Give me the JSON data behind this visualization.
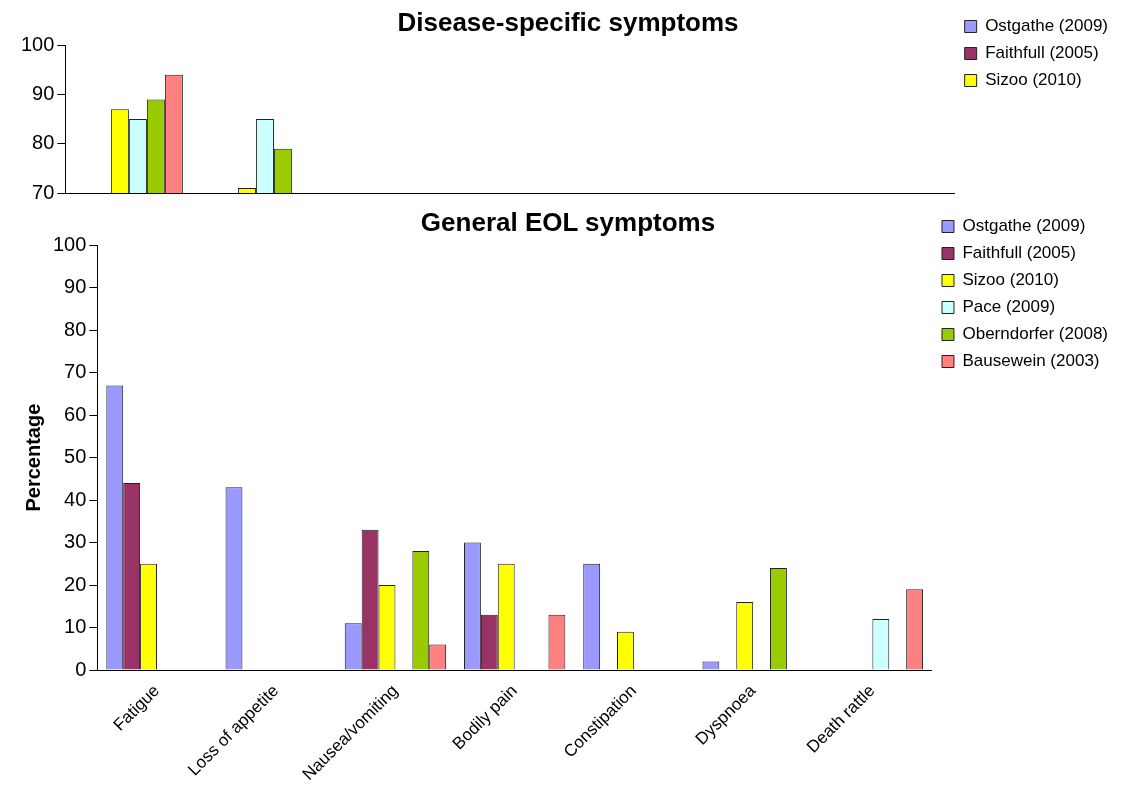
{
  "chart_data": [
    {
      "type": "bar",
      "title": "Disease-specific symptoms",
      "categories": [
        null,
        null,
        null,
        null,
        null,
        null,
        null
      ],
      "ylim": [
        70,
        100
      ],
      "yticks": [
        70,
        80,
        90,
        100
      ],
      "grid": false,
      "legend": "right",
      "tick_labels": "y",
      "series": [
        {
          "name": "Ostgathe (2009)",
          "color": "#9999ff",
          "values": [
            null,
            null,
            null,
            null,
            null,
            null,
            null
          ]
        },
        {
          "name": "Faithfull (2005)",
          "color": "#993366",
          "values": [
            null,
            null,
            null,
            null,
            null,
            null,
            null
          ]
        },
        {
          "name": "Sizoo (2010)",
          "color": "#ffff00",
          "values": [
            87,
            71,
            null,
            null,
            null,
            null,
            null
          ]
        },
        {
          "color": "#ccffff",
          "values": [
            85,
            85,
            null,
            null,
            null,
            null,
            null
          ]
        },
        {
          "color": "#99cc00",
          "values": [
            89,
            79,
            null,
            null,
            null,
            null,
            null
          ]
        },
        {
          "color": "#ff8080",
          "values": [
            94,
            null,
            null,
            null,
            null,
            null,
            null
          ]
        }
      ]
    },
    {
      "type": "bar",
      "title": "General EOL symptoms",
      "ylabel": "Percentage",
      "categories": [
        "Fatigue",
        "Loss of appetite",
        "Nausea/vomiting",
        "Bodily pain",
        "Constipation",
        "Dyspnoea",
        "Death rattle"
      ],
      "ylim": [
        0,
        100
      ],
      "yticks": [
        0,
        10,
        20,
        30,
        40,
        50,
        60,
        70,
        80,
        90,
        100
      ],
      "grid": false,
      "legend": "right",
      "series": [
        {
          "name": "Ostgathe (2009)",
          "color": "#9999ff",
          "values": [
            67,
            43,
            11,
            30,
            25,
            2,
            null
          ]
        },
        {
          "name": "Faithfull (2005)",
          "color": "#993366",
          "values": [
            44,
            null,
            33,
            13,
            null,
            null,
            null
          ]
        },
        {
          "name": "Sizoo (2010)",
          "color": "#ffff00",
          "values": [
            25,
            null,
            20,
            25,
            9,
            16,
            null
          ]
        },
        {
          "name": "Pace (2009)",
          "color": "#ccffff",
          "values": [
            null,
            null,
            null,
            null,
            null,
            null,
            12
          ]
        },
        {
          "name": "Oberndorfer (2008)",
          "color": "#99cc00",
          "values": [
            null,
            null,
            28,
            null,
            null,
            24,
            null
          ]
        },
        {
          "name": "Bausewein (2003)",
          "color": "#ff8080",
          "values": [
            null,
            null,
            6,
            13,
            null,
            null,
            19
          ]
        }
      ]
    }
  ]
}
